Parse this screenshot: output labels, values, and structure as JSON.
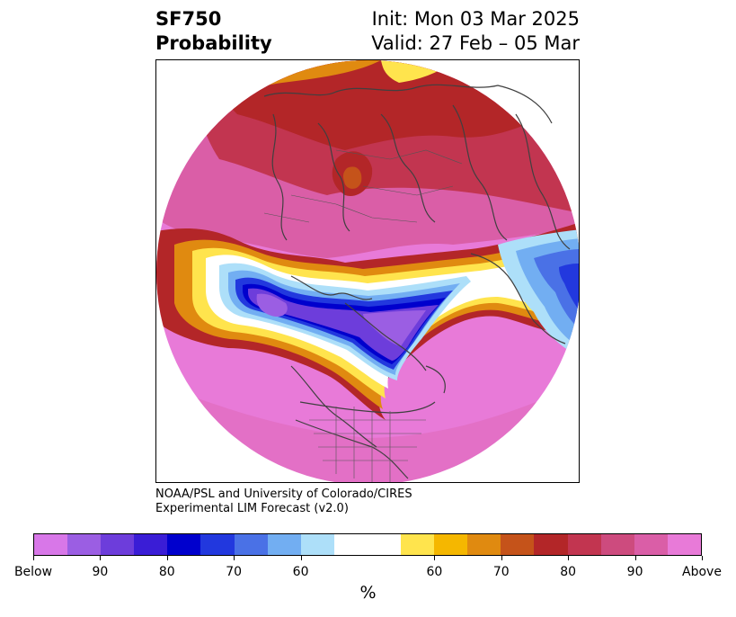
{
  "header": {
    "title_line1": "SF750",
    "title_line2": "Probability",
    "init": "Init: Mon 03 Mar 2025",
    "valid": "Valid: 27 Feb – 05 Mar"
  },
  "credit": {
    "line1": "NOAA/PSL and University of Colorado/CIRES",
    "line2": "Experimental LIM Forecast (v2.0)"
  },
  "colorbar": {
    "unit": "%",
    "colors": [
      "#d877e8",
      "#9b5ee3",
      "#6d3ddb",
      "#3a1dd6",
      "#0000cd",
      "#2238de",
      "#4a71e6",
      "#72aef2",
      "#addff9",
      "#ffffff",
      "#ffffff",
      "#ffe44d",
      "#f5b700",
      "#e08a10",
      "#c5531a",
      "#b32628",
      "#c23550",
      "#cd4b7e",
      "#da5ea7",
      "#e87ad8"
    ],
    "tick_labels": [
      "Below",
      "90",
      "80",
      "70",
      "60",
      "60",
      "70",
      "80",
      "90",
      "Above"
    ]
  },
  "map": {
    "colors": {
      "pink": "#e87ad8",
      "rose": "#da5ea7",
      "crimson": "#c23550",
      "red": "#b32628",
      "orange": "#e08a10",
      "yellow": "#ffe44d",
      "lightblue": "#addff9",
      "skyblue": "#72aef2",
      "blue": "#2238de",
      "darkblue": "#0000cd",
      "purple": "#6d3ddb",
      "violet": "#9b5ee3"
    }
  }
}
